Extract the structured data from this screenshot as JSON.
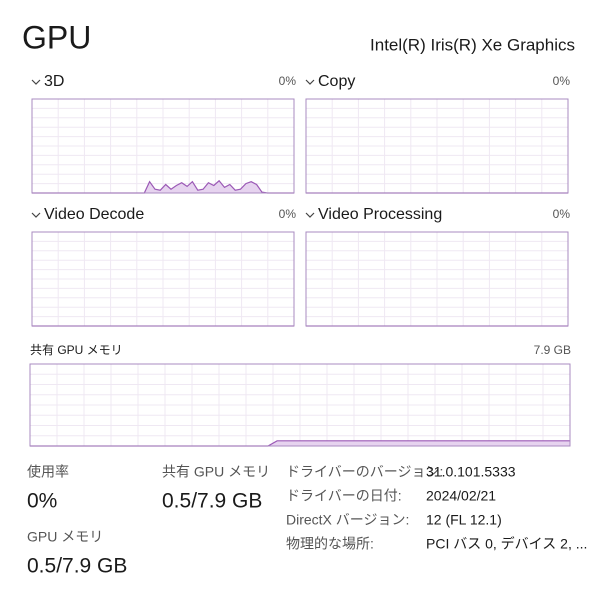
{
  "header": {
    "title": "GPU",
    "adapter": "Intel(R) Iris(R) Xe Graphics"
  },
  "graphs": [
    {
      "label": "3D",
      "reading": "0%",
      "ylim": [
        0,
        100
      ],
      "values": [
        0,
        0,
        0,
        0,
        0,
        0,
        0,
        0,
        0,
        0,
        0,
        0,
        0,
        0,
        0,
        0,
        0,
        0,
        0,
        0,
        0,
        0,
        12,
        4,
        3,
        9,
        4,
        8,
        11,
        7,
        12,
        3,
        4,
        11,
        8,
        13,
        6,
        9,
        3,
        4,
        10,
        12,
        9,
        1,
        0,
        0,
        0,
        0,
        0,
        0
      ]
    },
    {
      "label": "Copy",
      "reading": "0%",
      "ylim": [
        0,
        100
      ],
      "values": [
        0,
        0,
        0,
        0,
        0,
        0,
        0,
        0,
        0,
        0,
        0,
        0,
        0,
        0,
        0,
        0,
        0,
        0,
        0,
        0,
        0,
        0,
        0,
        0,
        0,
        0,
        0,
        0,
        0,
        0,
        0,
        0,
        0,
        0,
        0,
        0,
        0,
        0,
        0,
        0,
        0,
        0,
        0,
        0,
        0,
        0,
        0,
        0,
        0,
        0
      ]
    },
    {
      "label": "Video Decode",
      "reading": "0%",
      "ylim": [
        0,
        100
      ],
      "values": [
        0,
        0,
        0,
        0,
        0,
        0,
        0,
        0,
        0,
        0,
        0,
        0,
        0,
        0,
        0,
        0,
        0,
        0,
        0,
        0,
        0,
        0,
        0,
        0,
        0,
        0,
        0,
        0,
        0,
        0,
        0,
        0,
        0,
        0,
        0,
        0,
        0,
        0,
        0,
        0,
        0,
        0,
        0,
        0,
        0,
        0,
        0,
        0,
        0,
        0
      ]
    },
    {
      "label": "Video Processing",
      "reading": "0%",
      "ylim": [
        0,
        100
      ],
      "values": [
        0,
        0,
        0,
        0,
        0,
        0,
        0,
        0,
        0,
        0,
        0,
        0,
        0,
        0,
        0,
        0,
        0,
        0,
        0,
        0,
        0,
        0,
        0,
        0,
        0,
        0,
        0,
        0,
        0,
        0,
        0,
        0,
        0,
        0,
        0,
        0,
        0,
        0,
        0,
        0,
        0,
        0,
        0,
        0,
        0,
        0,
        0,
        0,
        0,
        0
      ]
    }
  ],
  "shared_memory_graph": {
    "label": "共有 GPU メモリ",
    "reading": "7.9 GB",
    "ylim": [
      0,
      7.9
    ],
    "values": [
      0,
      0,
      0,
      0,
      0,
      0,
      0,
      0,
      0,
      0,
      0,
      0,
      0,
      0,
      0,
      0,
      0,
      0,
      0,
      0,
      0,
      0,
      0,
      0,
      0,
      0,
      0,
      0.5,
      0.5,
      0.5,
      0.5,
      0.5,
      0.5,
      0.5,
      0.5,
      0.5,
      0.5,
      0.5,
      0.5,
      0.5,
      0.5,
      0.5,
      0.5,
      0.5,
      0.5,
      0.5,
      0.5,
      0.5,
      0.5,
      0.5,
      0.5,
      0.5,
      0.5,
      0.5,
      0.5,
      0.5,
      0.5,
      0.5,
      0.5,
      0.5
    ]
  },
  "stats": [
    {
      "label": "使用率",
      "value": "0%"
    },
    {
      "label": "共有 GPU メモリ",
      "value": "0.5/7.9 GB"
    },
    {
      "label": "GPU メモリ",
      "value": "0.5/7.9 GB"
    }
  ],
  "properties": [
    {
      "label": "ドライバーのバージョン:",
      "value": "31.0.101.5333"
    },
    {
      "label": "ドライバーの日付:",
      "value": "2024/02/21"
    },
    {
      "label": "DirectX バージョン:",
      "value": "12 (FL 12.1)"
    },
    {
      "label": "物理的な場所:",
      "value": "PCI バス 0, デバイス 2, ..."
    }
  ]
}
